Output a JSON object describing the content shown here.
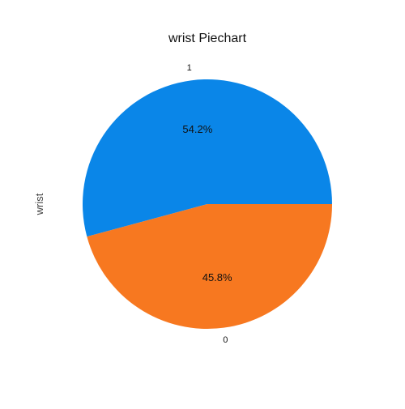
{
  "chart_data": {
    "type": "pie",
    "title": "wrist Piechart",
    "ylabel": "wrist",
    "start_angle_deg": 0,
    "direction": "counterclockwise",
    "slices": [
      {
        "label": "1",
        "value": 54.2,
        "pct_label": "54.2%",
        "color": "#0a86e8"
      },
      {
        "label": "0",
        "value": 45.8,
        "pct_label": "45.8%",
        "color": "#f77820"
      }
    ]
  }
}
